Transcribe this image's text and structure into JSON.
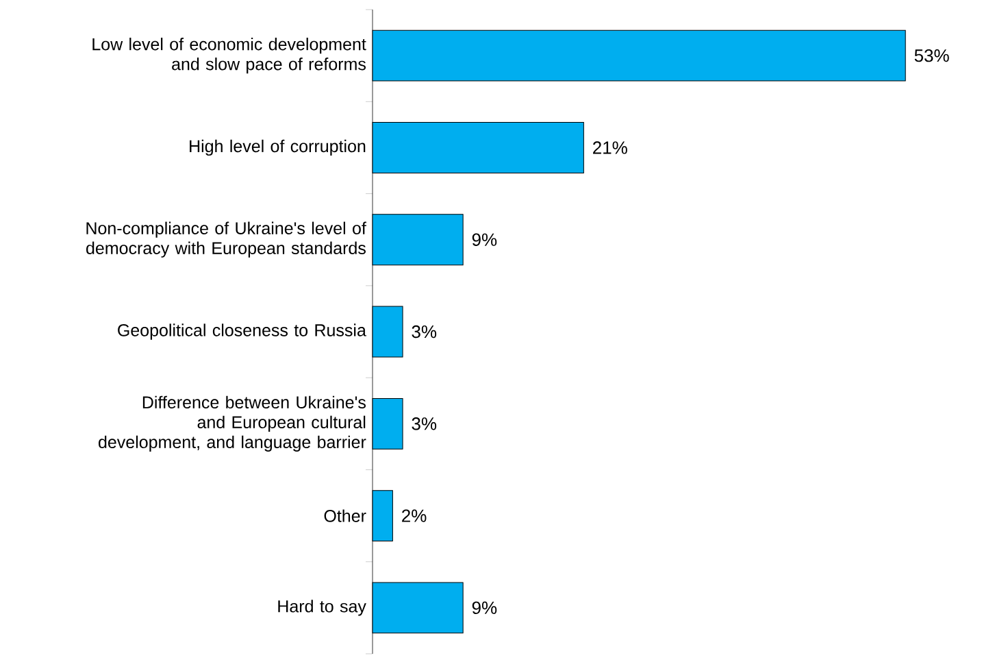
{
  "chart_data": {
    "type": "bar",
    "orientation": "horizontal",
    "color": "#00aeef",
    "categories": [
      "Low level of economic development and slow pace of reforms",
      "High level of corruption",
      "Non-compliance of Ukraine's level of democracy with European standards",
      "Geopolitical closeness to Russia",
      "Difference between Ukraine's and European cultural development, and language barrier",
      "Other",
      "Hard to say"
    ],
    "values": [
      53,
      21,
      9,
      3,
      3,
      2,
      9
    ],
    "value_labels": [
      "53%",
      "21%",
      "9%",
      "3%",
      "3%",
      "2%",
      "9%"
    ],
    "tick_labels": "y"
  }
}
